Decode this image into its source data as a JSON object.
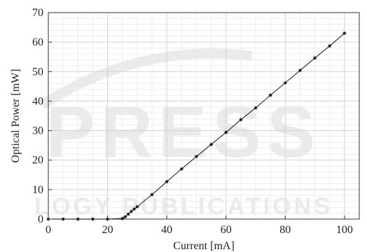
{
  "chart_data": {
    "type": "line",
    "title": "",
    "xlabel": "Current [mA]",
    "ylabel": "Optical Power [mW]",
    "xlim": [
      0,
      105
    ],
    "ylim": [
      0,
      70
    ],
    "x_ticks": [
      "0",
      "20",
      "40",
      "60",
      "80",
      "100"
    ],
    "y_ticks": [
      "0",
      "10",
      "20",
      "30",
      "40",
      "50",
      "60",
      "70"
    ],
    "grid": "on (major and minor)",
    "legend": "none",
    "series": [
      {
        "marker": "asterisk",
        "color": "#000000",
        "points": [
          [
            0,
            0
          ],
          [
            5,
            0
          ],
          [
            10,
            0
          ],
          [
            15,
            0
          ],
          [
            20,
            0
          ],
          [
            25,
            0.2
          ],
          [
            26,
            0.8
          ],
          [
            27,
            1.7
          ],
          [
            28,
            2.6
          ],
          [
            29,
            3.4
          ],
          [
            30,
            4.2
          ],
          [
            35,
            8.3
          ],
          [
            40,
            12.7
          ],
          [
            45,
            17.0
          ],
          [
            50,
            21.2
          ],
          [
            55,
            25.3
          ],
          [
            60,
            29.4
          ],
          [
            65,
            33.7
          ],
          [
            70,
            37.7
          ],
          [
            75,
            42.0
          ],
          [
            80,
            46.2
          ],
          [
            85,
            50.4
          ],
          [
            90,
            54.6
          ],
          [
            95,
            58.7
          ],
          [
            100,
            63.0
          ]
        ]
      }
    ]
  },
  "watermark": {
    "main": "PRESS",
    "sub": "LOGY PUBLICATIONS",
    "color": "#d9d9d9"
  }
}
